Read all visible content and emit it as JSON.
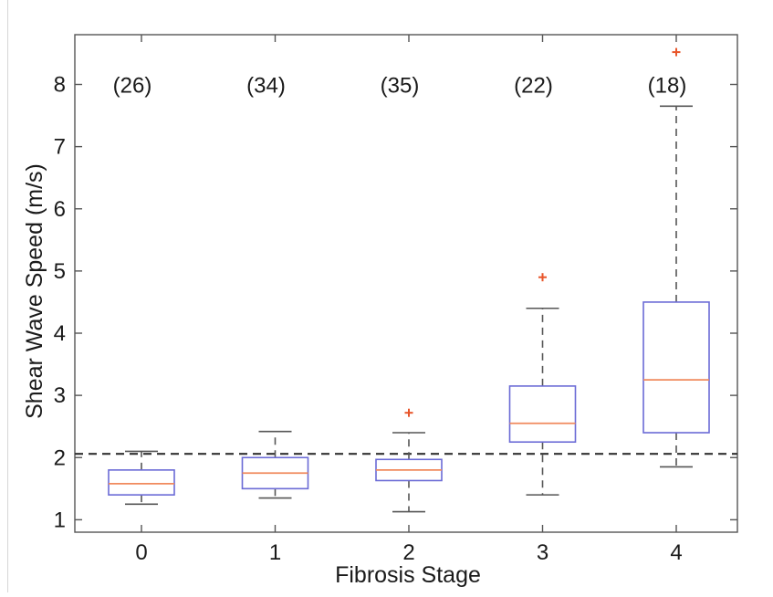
{
  "chart_data": {
    "type": "box",
    "xlabel": "Fibrosis Stage",
    "ylabel": "Shear Wave Speed (m/s)",
    "ylim": [
      0.8,
      8.8
    ],
    "yticks": [
      1,
      2,
      3,
      4,
      5,
      6,
      7,
      8
    ],
    "categories": [
      "0",
      "1",
      "2",
      "3",
      "4"
    ],
    "counts": [
      "(26)",
      "(34)",
      "(35)",
      "(22)",
      "(18)"
    ],
    "boxes": [
      {
        "category": "0",
        "whisker_low": 1.25,
        "q1": 1.4,
        "median": 1.58,
        "q3": 1.8,
        "whisker_high": 2.1,
        "outliers": []
      },
      {
        "category": "1",
        "whisker_low": 1.35,
        "q1": 1.5,
        "median": 1.75,
        "q3": 2.0,
        "whisker_high": 2.42,
        "outliers": []
      },
      {
        "category": "2",
        "whisker_low": 1.13,
        "q1": 1.63,
        "median": 1.8,
        "q3": 1.97,
        "whisker_high": 2.4,
        "outliers": [
          2.72
        ]
      },
      {
        "category": "3",
        "whisker_low": 1.4,
        "q1": 2.25,
        "median": 2.55,
        "q3": 3.15,
        "whisker_high": 4.4,
        "outliers": [
          4.9
        ]
      },
      {
        "category": "4",
        "whisker_low": 1.85,
        "q1": 2.4,
        "median": 3.25,
        "q3": 4.5,
        "whisker_high": 7.65,
        "outliers": [
          8.52
        ]
      }
    ],
    "reference_line": 2.06,
    "grid": false,
    "colors": {
      "box": "#6b6bd6",
      "median": "#f08a5d",
      "outlier": "#e8552a",
      "whisker": "#555555",
      "reference": "#333333",
      "axis": "#555555"
    }
  }
}
